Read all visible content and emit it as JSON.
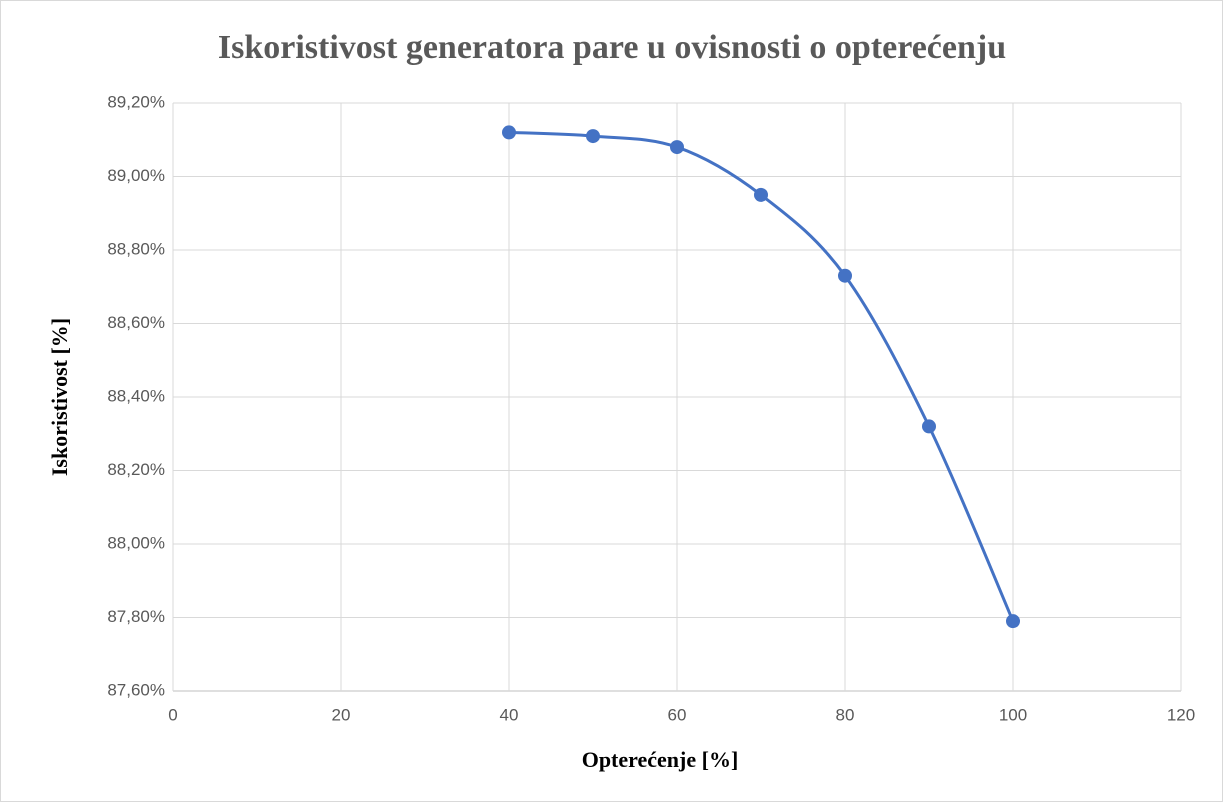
{
  "chart_data": {
    "type": "scatter",
    "title": "Iskoristivost generatora pare u ovisnosti o opterećenju",
    "xlabel": "Opterećenje [%]",
    "ylabel": "Iskoristivost [%]",
    "x": [
      40,
      50,
      60,
      70,
      80,
      90,
      100
    ],
    "series": [
      {
        "color": "#4472c4",
        "values": [
          89.12,
          89.11,
          89.08,
          88.95,
          88.73,
          88.32,
          87.79
        ]
      }
    ],
    "smooth": true,
    "grid": true,
    "xlim": [
      0,
      120
    ],
    "xticks": [
      0,
      20,
      40,
      60,
      80,
      100,
      120
    ],
    "ylim": [
      87.6,
      89.2
    ],
    "yticks": [
      {
        "value": 87.6,
        "label": "87,60%"
      },
      {
        "value": 87.8,
        "label": "87,80%"
      },
      {
        "value": 88.0,
        "label": "88,00%"
      },
      {
        "value": 88.2,
        "label": "88,20%"
      },
      {
        "value": 88.4,
        "label": "88,40%"
      },
      {
        "value": 88.6,
        "label": "88,60%"
      },
      {
        "value": 88.8,
        "label": "88,80%"
      },
      {
        "value": 89.0,
        "label": "89,00%"
      },
      {
        "value": 89.2,
        "label": "89,20%"
      }
    ]
  }
}
